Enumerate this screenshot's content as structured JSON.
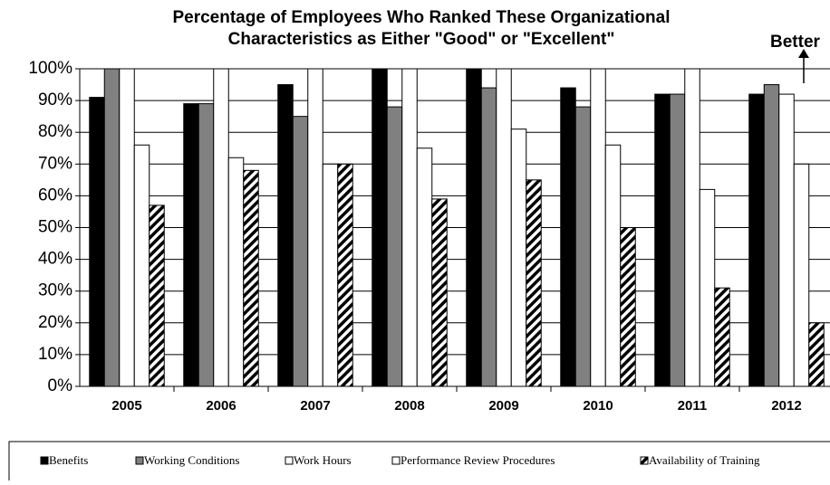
{
  "chart_data": {
    "type": "bar",
    "title": [
      "Percentage of Employees Who Ranked These Organizational",
      "Characteristics as Either \"Good\" or \"Excellent\""
    ],
    "annotation": "Better",
    "categories": [
      "2005",
      "2006",
      "2007",
      "2008",
      "2009",
      "2010",
      "2011",
      "2012"
    ],
    "series": [
      {
        "name": "Benefits",
        "color": "#000000",
        "values": [
          91,
          89,
          95,
          100,
          100,
          94,
          92,
          92
        ]
      },
      {
        "name": "Working Conditions",
        "color": "#808080",
        "values": [
          100,
          89,
          85,
          88,
          94,
          88,
          92,
          95
        ]
      },
      {
        "name": "Work Hours",
        "color": "#ffffff",
        "values": [
          100,
          100,
          100,
          100,
          100,
          100,
          100,
          92
        ]
      },
      {
        "name": "Performance Review Procedures",
        "color": "#ffffff",
        "values": [
          76,
          72,
          70,
          75,
          81,
          76,
          62,
          70
        ]
      },
      {
        "name": "Availability of Training",
        "color": "#000000",
        "fill_pattern": "diagonal",
        "values": [
          57,
          68,
          70,
          59,
          65,
          50,
          31,
          20
        ]
      }
    ],
    "ylim": [
      0,
      100
    ],
    "yticks": [
      {
        "value": 0,
        "label": "0%"
      },
      {
        "value": 10,
        "label": "10%"
      },
      {
        "value": 20,
        "label": "20%"
      },
      {
        "value": 30,
        "label": "30%"
      },
      {
        "value": 40,
        "label": "40%"
      },
      {
        "value": 50,
        "label": "50%"
      },
      {
        "value": 60,
        "label": "60%"
      },
      {
        "value": 70,
        "label": "70%"
      },
      {
        "value": 80,
        "label": "80%"
      },
      {
        "value": 90,
        "label": "90%"
      },
      {
        "value": 100,
        "label": "100%"
      }
    ],
    "grid": true,
    "legend": "bottom"
  }
}
